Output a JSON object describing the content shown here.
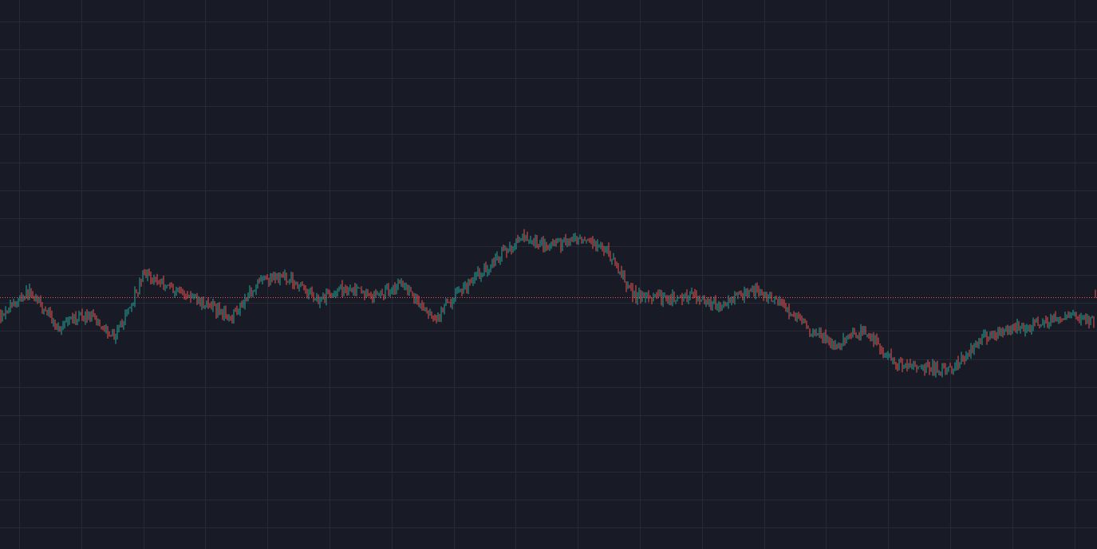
{
  "chart_data": {
    "type": "candlestick",
    "colors": {
      "background": "#181b25",
      "grid": "#252a36",
      "up": "#26a69a",
      "down": "#ef5350",
      "price_line": "#ef5350"
    },
    "grid": true,
    "ylim": [
      0,
      100
    ],
    "current_price": 45.9,
    "last_candle": {
      "open": 46.4,
      "high": 47.2,
      "low": 45.6,
      "close": 45.9
    },
    "close_path": [
      [
        0,
        42.7
      ],
      [
        2,
        47.0
      ],
      [
        4,
        40.3
      ],
      [
        6,
        42.7
      ],
      [
        8,
        38.7
      ],
      [
        10,
        50.2
      ],
      [
        12,
        47.4
      ],
      [
        14,
        44.9
      ],
      [
        16,
        42.3
      ],
      [
        18,
        49.2
      ],
      [
        20,
        49.4
      ],
      [
        22,
        45.6
      ],
      [
        24,
        47.5
      ],
      [
        26,
        46.1
      ],
      [
        28,
        48.5
      ],
      [
        30,
        41.4
      ],
      [
        32,
        47.5
      ],
      [
        34,
        51.8
      ],
      [
        36,
        56.5
      ],
      [
        38,
        55.5
      ],
      [
        40,
        56.0
      ],
      [
        42,
        54.6
      ],
      [
        44,
        46.1
      ],
      [
        46,
        45.7
      ],
      [
        48,
        46.2
      ],
      [
        50,
        44.1
      ],
      [
        52,
        47.2
      ],
      [
        54,
        45.2
      ],
      [
        56,
        40.2
      ],
      [
        58,
        37.2
      ],
      [
        60,
        40.1
      ],
      [
        62,
        33.7
      ],
      [
        64,
        33.2
      ],
      [
        66,
        32.8
      ],
      [
        68,
        38.2
      ],
      [
        70,
        39.9
      ],
      [
        72,
        41.2
      ],
      [
        74,
        42.4
      ],
      [
        76,
        41.5
      ]
    ]
  }
}
